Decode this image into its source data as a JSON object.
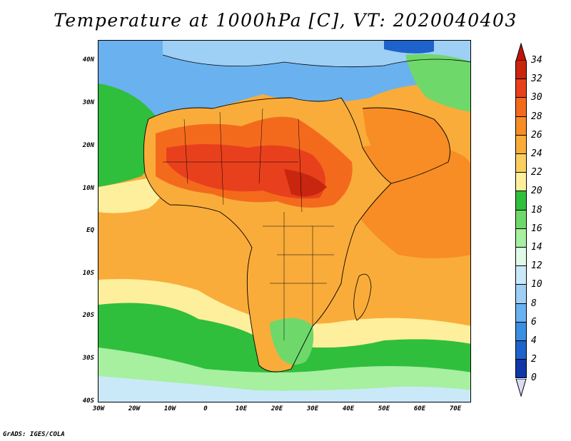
{
  "title": "Temperature at 1000hPa [C], VT: 2020040403",
  "footer": "GrADS: IGES/COLA",
  "axes": {
    "lat_labels": [
      "40N",
      "30N",
      "20N",
      "10N",
      "EQ",
      "10S",
      "20S",
      "30S",
      "40S"
    ],
    "lon_labels": [
      "30W",
      "20W",
      "10W",
      "0",
      "10E",
      "20E",
      "30E",
      "40E",
      "50E",
      "60E",
      "70E"
    ],
    "lat_range": [
      -40,
      45
    ],
    "lon_range": [
      -30,
      75
    ]
  },
  "colorbar": {
    "labels": [
      "34",
      "32",
      "30",
      "28",
      "26",
      "24",
      "22",
      "20",
      "18",
      "16",
      "14",
      "12",
      "10",
      "8",
      "6",
      "4",
      "2",
      "0"
    ],
    "colors": [
      "#c8260f",
      "#e8401c",
      "#f46a1c",
      "#f78d24",
      "#f9ac3a",
      "#fbcf5f",
      "#fdef9c",
      "#2fbf3c",
      "#6fd86a",
      "#a6f0a0",
      "#e0fae8",
      "#c9e9f8",
      "#9ecff5",
      "#6ab1ef",
      "#3b8fe0",
      "#1e63cc",
      "#1037a8",
      "#0b1b7a"
    ],
    "top_color": "#c0140a",
    "bottom_color": "#dcdcf8"
  }
}
